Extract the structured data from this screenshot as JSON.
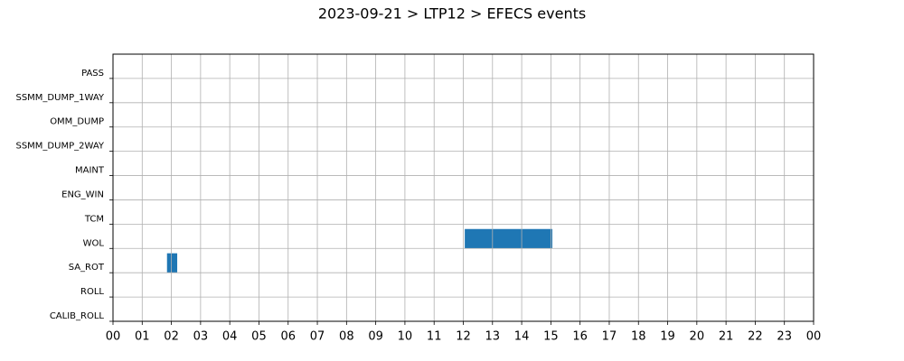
{
  "chart_data": {
    "type": "gantt",
    "title": "2023-09-21 > LTP12 > EFECS events",
    "categories": [
      "PASS",
      "SSMM_DUMP_1WAY",
      "OMM_DUMP",
      "SSMM_DUMP_2WAY",
      "MAINT",
      "ENG_WIN",
      "TCM",
      "WOL",
      "SA_ROT",
      "ROLL",
      "CALIB_ROLL"
    ],
    "events": [
      {
        "category": "WOL",
        "start": 12.05,
        "end": 15.05
      },
      {
        "category": "SA_ROT",
        "start": 1.85,
        "end": 2.2
      }
    ],
    "color": "#1f77b4",
    "xlim": [
      0,
      24
    ],
    "xticks": [
      {
        "value": 0,
        "label": "00"
      },
      {
        "value": 1,
        "label": "01"
      },
      {
        "value": 2,
        "label": "02"
      },
      {
        "value": 3,
        "label": "03"
      },
      {
        "value": 4,
        "label": "04"
      },
      {
        "value": 5,
        "label": "05"
      },
      {
        "value": 6,
        "label": "06"
      },
      {
        "value": 7,
        "label": "07"
      },
      {
        "value": 8,
        "label": "08"
      },
      {
        "value": 9,
        "label": "09"
      },
      10,
      11,
      12,
      13,
      14,
      15,
      16,
      17,
      18,
      19,
      20,
      21,
      22,
      23,
      {
        "value": 24,
        "label": "00"
      }
    ],
    "grid": true
  }
}
